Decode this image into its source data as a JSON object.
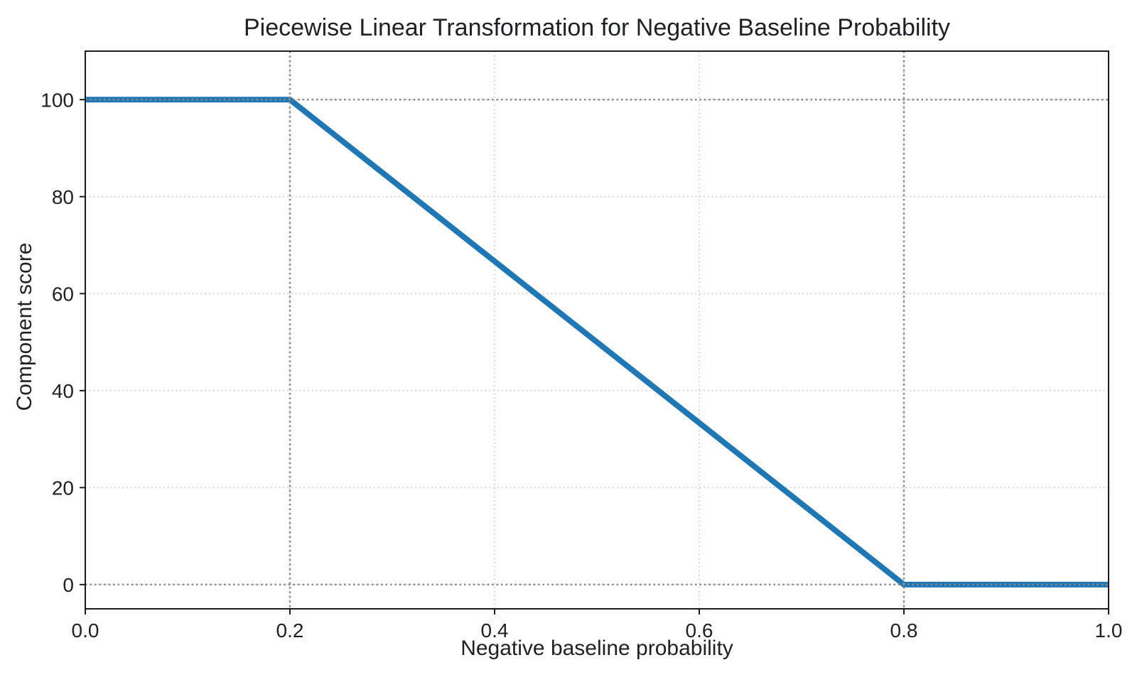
{
  "chart_data": {
    "type": "line",
    "title": "Piecewise Linear Transformation for Negative Baseline Probability",
    "xlabel": "Negative baseline probability",
    "ylabel": "Component score",
    "xlim": [
      0,
      1
    ],
    "ylim": [
      -5,
      110
    ],
    "xticks": {
      "values": [
        0,
        0.2,
        0.4,
        0.6,
        0.8,
        1.0
      ],
      "labels": [
        "0.0",
        "0.2",
        "0.4",
        "0.6",
        "0.8",
        "1.0"
      ]
    },
    "yticks": {
      "values": [
        0,
        20,
        40,
        60,
        80,
        100
      ],
      "labels": [
        "0",
        "20",
        "40",
        "60",
        "80",
        "100"
      ]
    },
    "grid": {
      "on": true,
      "style": "dotted",
      "color": "#c9c9c9"
    },
    "reference_lines": {
      "style": "dotted",
      "color": "#8a8a8a",
      "vertical_x": [
        0.2,
        0.8
      ],
      "horizontal_y": [
        0,
        100
      ]
    },
    "legend": {
      "visible": false
    },
    "series": [
      {
        "name": "component score",
        "color": "#1f77b4",
        "linewidth": 8,
        "points": [
          [
            0,
            100
          ],
          [
            0.2,
            100
          ],
          [
            0.8,
            0
          ],
          [
            1.0,
            0
          ]
        ]
      }
    ],
    "colors": {
      "background": "#ffffff",
      "spine": "#1c1c1c",
      "text": "#202124"
    }
  }
}
